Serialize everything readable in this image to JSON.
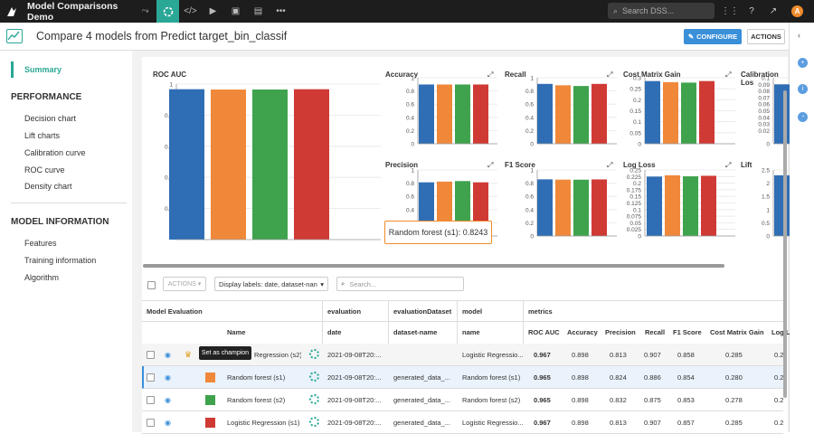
{
  "topbar": {
    "project_name": "Model Comparisons Demo",
    "search_placeholder": "Search DSS...",
    "avatar_letter": "A"
  },
  "header": {
    "title": "Compare 4 models from Predict target_bin_classif",
    "configure_label": "CONFIGURE",
    "actions_label": "ACTIONS"
  },
  "sidebar": {
    "summary_label": "Summary",
    "performance_title": "PERFORMANCE",
    "performance_items": [
      "Decision chart",
      "Lift charts",
      "Calibration curve",
      "ROC curve",
      "Density chart"
    ],
    "model_info_title": "MODEL INFORMATION",
    "model_info_items": [
      "Features",
      "Training information",
      "Algorithm"
    ]
  },
  "colors": {
    "blue": "#2f6eb5",
    "orange": "#f0883a",
    "green": "#3fa34d",
    "red": "#d03a34",
    "accent": "#2aa796"
  },
  "chart_data": [
    {
      "type": "bar",
      "title": "ROC AUC",
      "categories": [
        "Logistic Regression (s2)",
        "Random forest (s1)",
        "Random forest (s2)",
        "Logistic Regression (s1)"
      ],
      "values": [
        0.967,
        0.965,
        0.965,
        0.967
      ],
      "ylim": [
        0,
        1
      ],
      "yticks": [
        "0.2",
        "0.4",
        "0.6",
        "0.8",
        "1"
      ]
    },
    {
      "type": "bar",
      "title": "Accuracy",
      "values": [
        0.898,
        0.898,
        0.898,
        0.898
      ],
      "ylim": [
        0,
        1
      ],
      "yticks": [
        "0",
        "0.2",
        "0.4",
        "0.6",
        "0.8",
        "1"
      ]
    },
    {
      "type": "bar",
      "title": "Recall",
      "values": [
        0.907,
        0.886,
        0.875,
        0.907
      ],
      "ylim": [
        0,
        1
      ],
      "yticks": [
        "0",
        "0.2",
        "0.4",
        "0.6",
        "0.8",
        "1"
      ]
    },
    {
      "type": "bar",
      "title": "Cost Matrix Gain",
      "values": [
        0.285,
        0.28,
        0.278,
        0.285
      ],
      "ylim": [
        0,
        0.3
      ],
      "yticks": [
        "0",
        "0.05",
        "0.1",
        "0.15",
        "0.2",
        "0.25",
        "0.3"
      ]
    },
    {
      "type": "bar",
      "title": "Calibration Los",
      "values": [
        0.09,
        0.09,
        0.09,
        0.09
      ],
      "ylim": [
        0,
        0.1
      ],
      "yticks": [
        "0",
        "0.02",
        "0.03",
        "0.04",
        "0.05",
        "0.06",
        "0.07",
        "0.08",
        "0.09",
        "0.1"
      ]
    },
    {
      "type": "bar",
      "title": "Precision",
      "values": [
        0.813,
        0.824,
        0.832,
        0.813
      ],
      "ylim": [
        0,
        1
      ],
      "yticks": [
        "0",
        "0.2",
        "0.4",
        "0.6",
        "0.8",
        "1"
      ]
    },
    {
      "type": "bar",
      "title": "F1 Score",
      "values": [
        0.858,
        0.854,
        0.853,
        0.857
      ],
      "ylim": [
        0,
        1
      ],
      "yticks": [
        "0",
        "0.2",
        "0.4",
        "0.6",
        "0.8",
        "1"
      ]
    },
    {
      "type": "bar",
      "title": "Log Loss",
      "values": [
        0.225,
        0.23,
        0.226,
        0.228
      ],
      "ylim": [
        0,
        0.25
      ],
      "yticks": [
        "0",
        "0.025",
        "0.05",
        "0.075",
        "0.1",
        "0.125",
        "0.15",
        "0.175",
        "0.2",
        "0.225",
        "0.25"
      ]
    },
    {
      "type": "bar",
      "title": "Lift",
      "values": [
        2.3
      ],
      "ylim": [
        0,
        2.5
      ],
      "yticks": [
        "0",
        "0.5",
        "1",
        "1.5",
        "2",
        "2.5"
      ]
    }
  ],
  "tooltip": "Random forest (s1): 0.8243",
  "toolbar": {
    "actions_label": "ACTIONS",
    "display_labels": "Display labels: date, dataset-nan",
    "search_placeholder": "Search..."
  },
  "table": {
    "group_headers": [
      "Model Evaluation",
      "evaluation",
      "evaluationDataset",
      "model",
      "metrics"
    ],
    "columns": [
      "Name",
      "date",
      "dataset-name",
      "name",
      "ROC AUC",
      "Accuracy",
      "Precision",
      "Recall",
      "F1 Score",
      "Cost Matrix Gain",
      "Log L"
    ],
    "rows": [
      {
        "name": "Logistic Regression (s2)",
        "date": "2021-09-08T20:...",
        "dataset": "",
        "model": "Logistic Regressio...",
        "roc": "0.967",
        "acc": "0.898",
        "prec": "0.813",
        "rec": "0.907",
        "f1": "0.858",
        "cmg": "0.285",
        "ll": "0.2"
      },
      {
        "name": "Random forest (s1)",
        "date": "2021-09-08T20:...",
        "dataset": "generated_data_...",
        "model": "Random forest (s1)",
        "roc": "0.965",
        "acc": "0.898",
        "prec": "0.824",
        "rec": "0.886",
        "f1": "0.854",
        "cmg": "0.280",
        "ll": "0.2"
      },
      {
        "name": "Random forest (s2)",
        "date": "2021-09-08T20:...",
        "dataset": "generated_data_...",
        "model": "Random forest (s2)",
        "roc": "0.965",
        "acc": "0.898",
        "prec": "0.832",
        "rec": "0.875",
        "f1": "0.853",
        "cmg": "0.278",
        "ll": "0.2"
      },
      {
        "name": "Logistic Regression (s1)",
        "date": "2021-09-08T20:...",
        "dataset": "generated_data_...",
        "model": "Logistic Regressio...",
        "roc": "0.967",
        "acc": "0.898",
        "prec": "0.813",
        "rec": "0.907",
        "f1": "0.857",
        "cmg": "0.285",
        "ll": "0.2"
      }
    ],
    "champion_tooltip": "Set as champion",
    "row1_visible_name": "Regression (s2)"
  }
}
